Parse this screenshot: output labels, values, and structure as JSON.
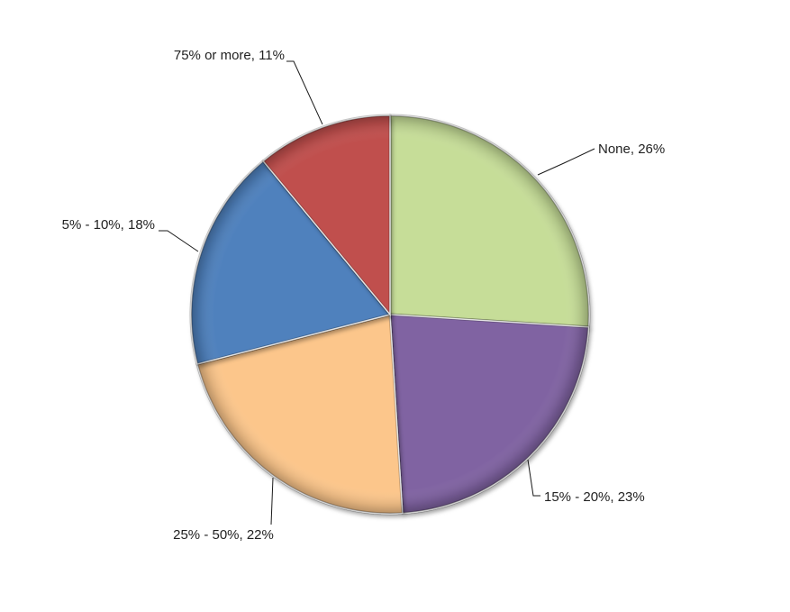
{
  "chart_data": {
    "type": "pie",
    "title": "",
    "slices": [
      {
        "label": "None",
        "value": 26,
        "display": "None, 26%",
        "color": "#c6dd98"
      },
      {
        "label": "15% - 20%",
        "value": 23,
        "display": "15% - 20%, 23%",
        "color": "#8064a2"
      },
      {
        "label": "25% - 50%",
        "value": 22,
        "display": "25% - 50%, 22%",
        "color": "#fcc68b"
      },
      {
        "label": "5% - 10%",
        "value": 18,
        "display": "5% - 10%, 18%",
        "color": "#4f81bd"
      },
      {
        "label": "75% or more",
        "value": 11,
        "display": "75% or more, 11%",
        "color": "#c0504d"
      }
    ],
    "start_angle": "12 o'clock",
    "direction": "clockwise",
    "style": "3d-bevel"
  }
}
